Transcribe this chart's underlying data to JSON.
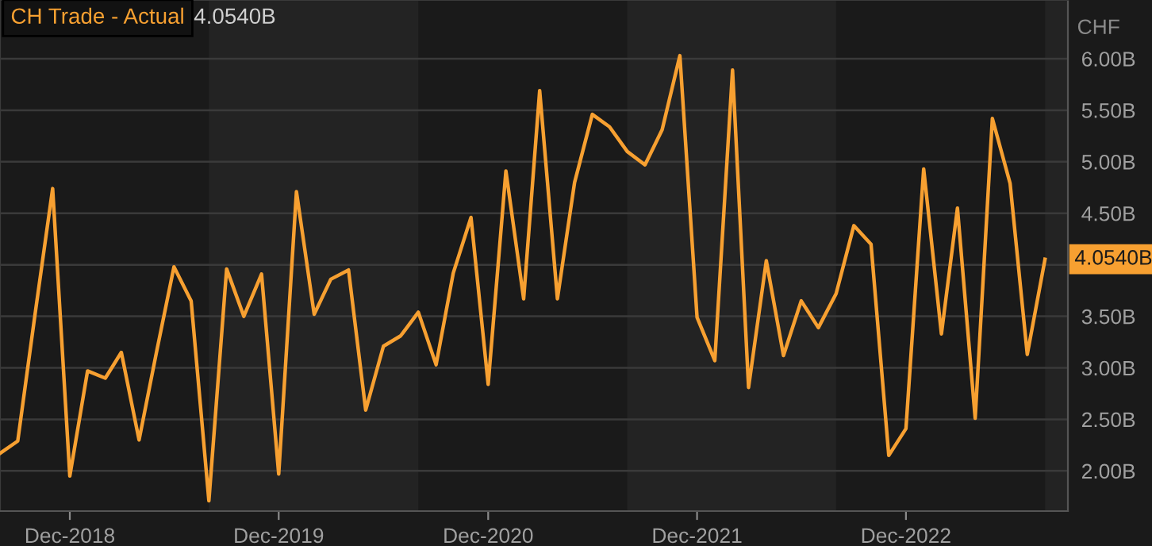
{
  "chart_data": {
    "type": "line",
    "ylabel": "CHF",
    "x": [
      "2018-08",
      "2018-09",
      "2018-10",
      "2018-11",
      "2018-12",
      "2019-01",
      "2019-02",
      "2019-03",
      "2019-04",
      "2019-05",
      "2019-06",
      "2019-07",
      "2019-08",
      "2019-09",
      "2019-10",
      "2019-11",
      "2019-12",
      "2020-01",
      "2020-02",
      "2020-03",
      "2020-04",
      "2020-05",
      "2020-06",
      "2020-07",
      "2020-08",
      "2020-09",
      "2020-10",
      "2020-11",
      "2020-12",
      "2021-01",
      "2021-02",
      "2021-03",
      "2021-04",
      "2021-05",
      "2021-06",
      "2021-07",
      "2021-08",
      "2021-09",
      "2021-10",
      "2021-11",
      "2021-12",
      "2022-01",
      "2022-02",
      "2022-03",
      "2022-04",
      "2022-05",
      "2022-06",
      "2022-07",
      "2022-08",
      "2022-09",
      "2022-10",
      "2022-11",
      "2022-12",
      "2023-01",
      "2023-02",
      "2023-03",
      "2023-04",
      "2023-05",
      "2023-06",
      "2023-07",
      "2023-08"
    ],
    "series": [
      {
        "name": "CH Trade - Actual",
        "color": "#f7a031",
        "values": [
          2.17,
          2.29,
          3.51,
          4.74,
          1.95,
          2.97,
          2.9,
          3.15,
          2.3,
          3.14,
          3.98,
          3.65,
          1.71,
          3.96,
          3.5,
          3.91,
          1.97,
          4.71,
          3.52,
          3.86,
          3.95,
          2.59,
          3.21,
          3.31,
          3.54,
          3.03,
          3.92,
          4.46,
          2.84,
          4.91,
          3.67,
          5.69,
          3.67,
          4.8,
          5.46,
          5.34,
          5.1,
          4.97,
          5.31,
          6.03,
          3.49,
          3.07,
          5.89,
          2.81,
          4.04,
          3.12,
          3.65,
          3.39,
          3.72,
          4.38,
          4.2,
          2.15,
          2.41,
          4.93,
          3.33,
          4.55,
          2.51,
          5.42,
          4.79,
          3.13,
          4.054
        ]
      }
    ],
    "annotations": [
      "4.0540B",
      {
        "text": "4.0540B",
        "x": "2023-08",
        "y": 4.054
      }
    ],
    "xlim": [
      "2018-08",
      "2023-09-10"
    ],
    "xticks": [
      {
        "value": "2018-12",
        "label": "Dec-2018"
      },
      {
        "value": "2019-12",
        "label": "Dec-2019"
      },
      {
        "value": "2020-12",
        "label": "Dec-2020"
      },
      {
        "value": "2021-12",
        "label": "Dec-2021"
      },
      {
        "value": "2022-12",
        "label": "Dec-2022"
      }
    ],
    "ylim": [
      1.61,
      6.57
    ],
    "yticks": [
      {
        "value": 2,
        "label": "2.00B"
      },
      {
        "value": 2.5,
        "label": "2.50B"
      },
      {
        "value": 3,
        "label": "3.00B"
      },
      {
        "value": 3.5,
        "label": "3.50B"
      },
      {
        "value": 4,
        "label": null
      },
      {
        "value": 4.5,
        "label": "4.50B"
      },
      {
        "value": 5,
        "label": "5.00B"
      },
      {
        "value": 5.5,
        "label": "5.50B"
      },
      {
        "value": 6,
        "label": "6.00B"
      }
    ],
    "bands": [
      {
        "axis": "x",
        "from": "2019-08",
        "to": "2020-08",
        "color": "#232323"
      },
      {
        "axis": "x",
        "from": "2021-08",
        "to": "2022-08",
        "color": "#232323"
      },
      {
        "axis": "x",
        "from": "2023-08",
        "to": "2023-09-10",
        "color": "#232323"
      }
    ],
    "grid": "y",
    "legend": "top left",
    "marker": "none",
    "line_style": "solid"
  }
}
